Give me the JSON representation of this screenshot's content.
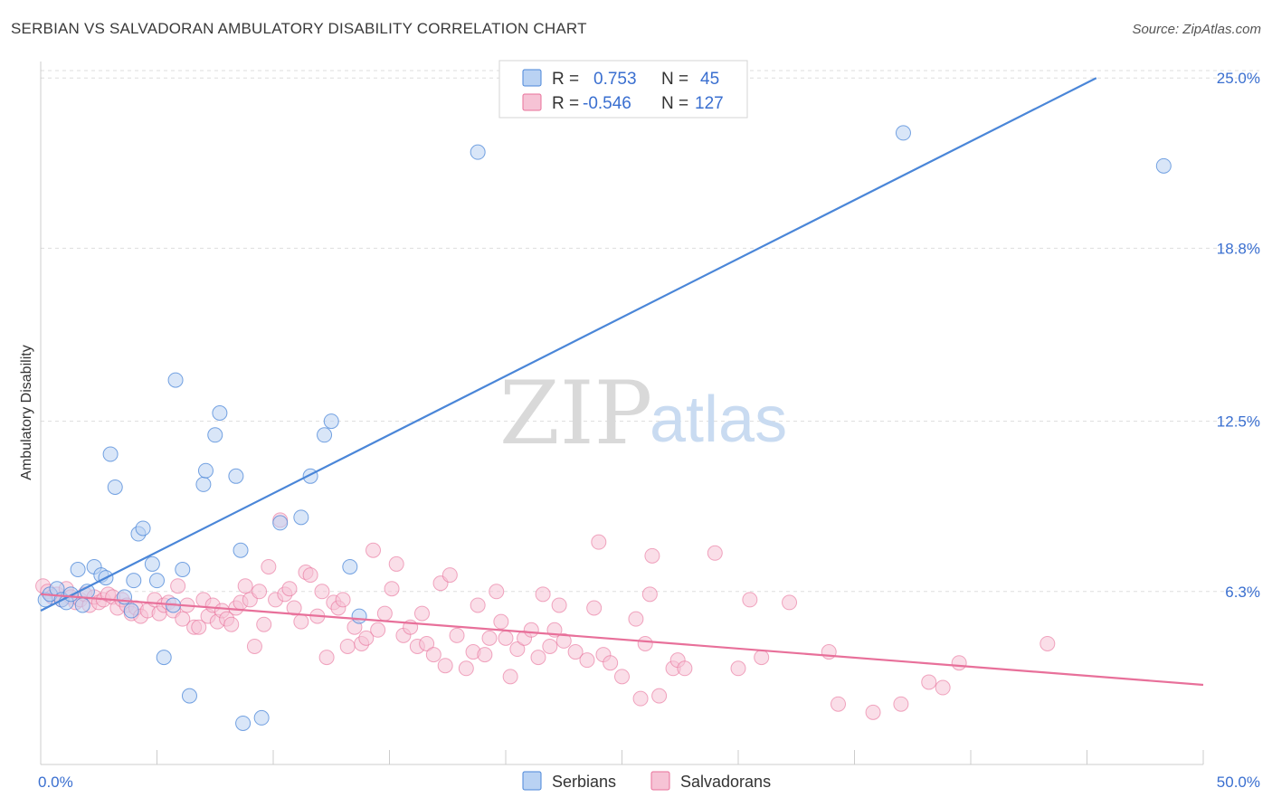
{
  "title": "SERBIAN VS SALVADORAN AMBULATORY DISABILITY CORRELATION CHART",
  "source": "Source: ZipAtlas.com",
  "watermark": {
    "zip": "ZIP",
    "atlas": "atlas"
  },
  "colors": {
    "serbians": "#4a86d8",
    "serbians_fill": "#b9d2f3",
    "salvadorans": "#e8709a",
    "salvadorans_fill": "#f6c3d5",
    "tick_label": "#3a6fd0",
    "grid": "#dddddd"
  },
  "legend": {
    "r_label": "R =",
    "n_label": "N =",
    "rows": [
      {
        "r": "0.753",
        "n": "45"
      },
      {
        "r": "-0.546",
        "n": "127"
      }
    ]
  },
  "chart_data": {
    "type": "scatter",
    "ylabel": "Ambulatory Disability",
    "xlim": [
      0,
      50
    ],
    "ylim": [
      0,
      25.6
    ],
    "x_tick_labels": [
      "0.0%",
      "50.0%"
    ],
    "y_ticks": [
      6.3,
      12.5,
      18.8,
      25.0
    ],
    "y_tick_labels": [
      "6.3%",
      "12.5%",
      "18.8%",
      "25.0%"
    ],
    "grid": true,
    "legend_position": "bottom",
    "series": [
      {
        "name": "Serbians",
        "trend": {
          "x": [
            0,
            45.4
          ],
          "y": [
            5.6,
            25.0
          ]
        },
        "points": [
          [
            0.2,
            6.0
          ],
          [
            0.4,
            6.2
          ],
          [
            0.7,
            6.4
          ],
          [
            0.9,
            6.0
          ],
          [
            1.1,
            5.9
          ],
          [
            1.3,
            6.2
          ],
          [
            1.6,
            7.1
          ],
          [
            1.8,
            5.8
          ],
          [
            2.0,
            6.3
          ],
          [
            2.3,
            7.2
          ],
          [
            2.6,
            6.9
          ],
          [
            2.8,
            6.8
          ],
          [
            3.0,
            11.3
          ],
          [
            3.2,
            10.1
          ],
          [
            3.6,
            6.1
          ],
          [
            3.9,
            5.6
          ],
          [
            4.0,
            6.7
          ],
          [
            4.2,
            8.4
          ],
          [
            4.4,
            8.6
          ],
          [
            4.8,
            7.3
          ],
          [
            5.0,
            6.7
          ],
          [
            5.3,
            3.9
          ],
          [
            5.7,
            5.8
          ],
          [
            5.8,
            14.0
          ],
          [
            6.1,
            7.1
          ],
          [
            6.4,
            2.5
          ],
          [
            7.0,
            10.2
          ],
          [
            7.1,
            10.7
          ],
          [
            7.5,
            12.0
          ],
          [
            7.7,
            12.8
          ],
          [
            8.4,
            10.5
          ],
          [
            8.6,
            7.8
          ],
          [
            8.7,
            1.5
          ],
          [
            9.5,
            1.7
          ],
          [
            10.3,
            8.8
          ],
          [
            11.2,
            9.0
          ],
          [
            11.6,
            10.5
          ],
          [
            12.2,
            12.0
          ],
          [
            12.5,
            12.5
          ],
          [
            13.3,
            7.2
          ],
          [
            13.7,
            5.4
          ],
          [
            18.8,
            22.3
          ],
          [
            27.0,
            24.5
          ],
          [
            37.1,
            23.0
          ],
          [
            48.3,
            21.8
          ]
        ]
      },
      {
        "name": "Salvadorans",
        "trend": {
          "x": [
            0,
            50
          ],
          "y": [
            6.2,
            2.9
          ]
        },
        "points": [
          [
            0.1,
            6.5
          ],
          [
            0.3,
            6.3
          ],
          [
            0.5,
            6.1
          ],
          [
            0.7,
            6.2
          ],
          [
            0.9,
            6.0
          ],
          [
            1.1,
            6.4
          ],
          [
            1.3,
            6.1
          ],
          [
            1.5,
            5.9
          ],
          [
            1.7,
            6.0
          ],
          [
            1.9,
            6.2
          ],
          [
            2.1,
            5.8
          ],
          [
            2.3,
            6.1
          ],
          [
            2.5,
            5.9
          ],
          [
            2.7,
            6.0
          ],
          [
            2.9,
            6.2
          ],
          [
            3.1,
            6.1
          ],
          [
            3.3,
            5.7
          ],
          [
            3.5,
            6.0
          ],
          [
            3.7,
            5.8
          ],
          [
            3.9,
            5.5
          ],
          [
            4.1,
            5.7
          ],
          [
            4.3,
            5.4
          ],
          [
            4.6,
            5.6
          ],
          [
            4.9,
            6.0
          ],
          [
            5.1,
            5.5
          ],
          [
            5.3,
            5.8
          ],
          [
            5.5,
            5.9
          ],
          [
            5.7,
            5.6
          ],
          [
            5.9,
            6.5
          ],
          [
            6.1,
            5.3
          ],
          [
            6.3,
            5.8
          ],
          [
            6.6,
            5.0
          ],
          [
            6.8,
            5.0
          ],
          [
            7.0,
            6.0
          ],
          [
            7.2,
            5.4
          ],
          [
            7.4,
            5.8
          ],
          [
            7.6,
            5.2
          ],
          [
            7.8,
            5.6
          ],
          [
            8.0,
            5.3
          ],
          [
            8.2,
            5.1
          ],
          [
            8.4,
            5.7
          ],
          [
            8.6,
            5.9
          ],
          [
            8.8,
            6.5
          ],
          [
            9.0,
            6.0
          ],
          [
            9.2,
            4.3
          ],
          [
            9.4,
            6.3
          ],
          [
            9.6,
            5.1
          ],
          [
            9.8,
            7.2
          ],
          [
            10.1,
            6.0
          ],
          [
            10.3,
            8.9
          ],
          [
            10.5,
            6.2
          ],
          [
            10.7,
            6.4
          ],
          [
            10.9,
            5.7
          ],
          [
            11.2,
            5.2
          ],
          [
            11.4,
            7.0
          ],
          [
            11.6,
            6.9
          ],
          [
            11.9,
            5.4
          ],
          [
            12.1,
            6.3
          ],
          [
            12.3,
            3.9
          ],
          [
            12.6,
            5.9
          ],
          [
            12.8,
            5.7
          ],
          [
            13.0,
            6.0
          ],
          [
            13.2,
            4.3
          ],
          [
            13.5,
            5.0
          ],
          [
            13.8,
            4.4
          ],
          [
            14.0,
            4.6
          ],
          [
            14.3,
            7.8
          ],
          [
            14.5,
            4.9
          ],
          [
            14.8,
            5.5
          ],
          [
            15.1,
            6.4
          ],
          [
            15.3,
            7.3
          ],
          [
            15.6,
            4.7
          ],
          [
            15.9,
            5.0
          ],
          [
            16.2,
            4.3
          ],
          [
            16.4,
            5.5
          ],
          [
            16.6,
            4.4
          ],
          [
            16.9,
            4.0
          ],
          [
            17.2,
            6.6
          ],
          [
            17.4,
            3.6
          ],
          [
            17.6,
            6.9
          ],
          [
            17.9,
            4.7
          ],
          [
            18.3,
            3.5
          ],
          [
            18.6,
            4.1
          ],
          [
            18.8,
            5.8
          ],
          [
            19.1,
            4.0
          ],
          [
            19.3,
            4.6
          ],
          [
            19.6,
            6.3
          ],
          [
            19.8,
            5.2
          ],
          [
            20.0,
            4.6
          ],
          [
            20.2,
            3.2
          ],
          [
            20.5,
            4.2
          ],
          [
            20.8,
            4.6
          ],
          [
            21.1,
            4.9
          ],
          [
            21.4,
            3.9
          ],
          [
            21.6,
            6.2
          ],
          [
            21.9,
            4.3
          ],
          [
            22.1,
            4.9
          ],
          [
            22.3,
            5.8
          ],
          [
            22.5,
            4.5
          ],
          [
            23.0,
            4.1
          ],
          [
            23.5,
            3.8
          ],
          [
            23.8,
            5.7
          ],
          [
            24.0,
            8.1
          ],
          [
            24.2,
            4.0
          ],
          [
            24.5,
            3.7
          ],
          [
            25.0,
            3.2
          ],
          [
            25.6,
            5.3
          ],
          [
            25.8,
            2.4
          ],
          [
            26.0,
            4.4
          ],
          [
            26.2,
            6.2
          ],
          [
            26.3,
            7.6
          ],
          [
            26.6,
            2.5
          ],
          [
            27.2,
            3.5
          ],
          [
            27.4,
            3.8
          ],
          [
            27.7,
            3.5
          ],
          [
            29.0,
            7.7
          ],
          [
            30.0,
            3.5
          ],
          [
            30.5,
            6.0
          ],
          [
            31.0,
            3.9
          ],
          [
            32.2,
            5.9
          ],
          [
            33.9,
            4.1
          ],
          [
            34.3,
            2.2
          ],
          [
            35.8,
            1.9
          ],
          [
            37.0,
            2.2
          ],
          [
            38.2,
            3.0
          ],
          [
            38.8,
            2.8
          ],
          [
            39.5,
            3.7
          ],
          [
            43.3,
            4.4
          ]
        ]
      }
    ]
  },
  "bottom_legend": [
    "Serbians",
    "Salvadorans"
  ]
}
